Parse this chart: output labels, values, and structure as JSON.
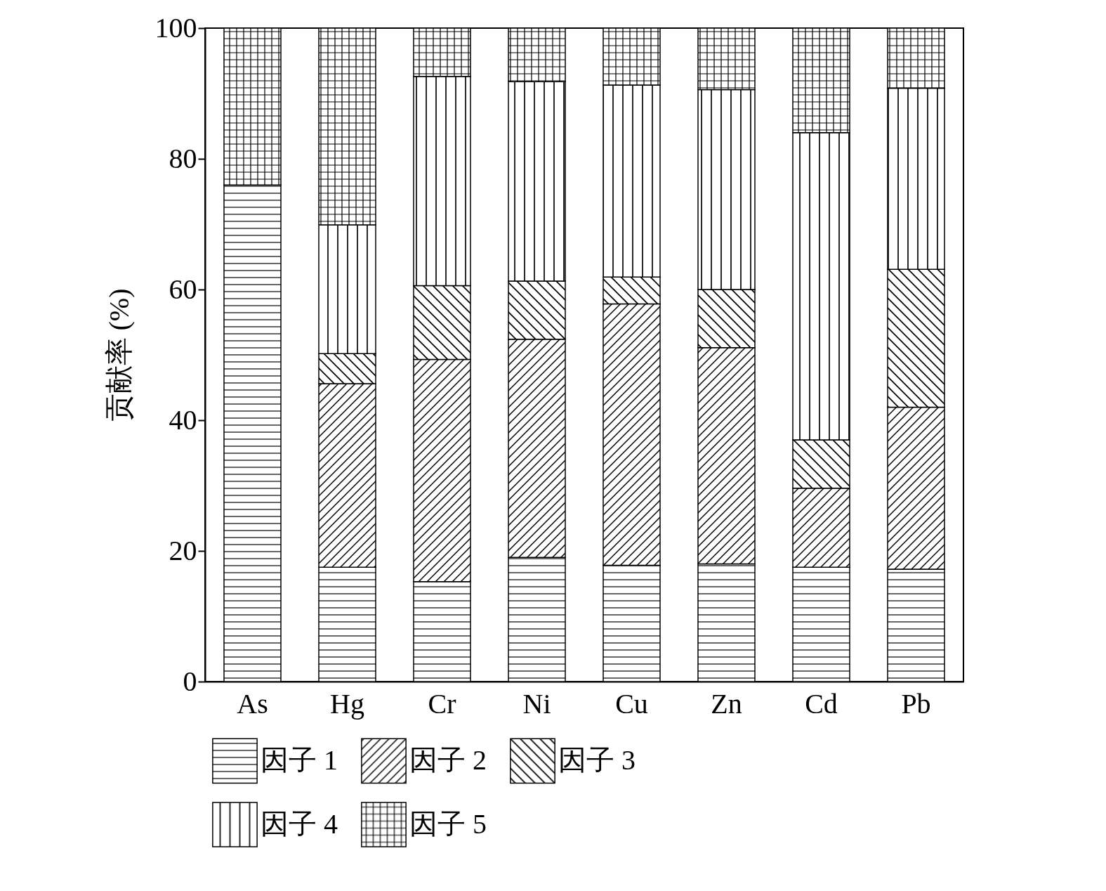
{
  "chart_data": {
    "type": "bar",
    "stacked": true,
    "ylabel": "贡献率 (%)",
    "categories": [
      "As",
      "Hg",
      "Cr",
      "Ni",
      "Cu",
      "Zn",
      "Cd",
      "Pb"
    ],
    "series": [
      {
        "name": "因子 1",
        "color": "#000000",
        "values": [
          76,
          17.5,
          15.3,
          19,
          17.8,
          18,
          17.5,
          17.2
        ]
      },
      {
        "name": "因子 2",
        "color": "#000000",
        "values": [
          0,
          28.1,
          34,
          33.4,
          40,
          33.1,
          12.1,
          24.8
        ]
      },
      {
        "name": "因子 3",
        "color": "#000000",
        "values": [
          0,
          4.6,
          11.3,
          8.9,
          4.1,
          8.9,
          7.4,
          21.1
        ]
      },
      {
        "name": "因子 4",
        "color": "#000000",
        "values": [
          0,
          19.7,
          32,
          30.5,
          29.4,
          30.6,
          47,
          27.7
        ]
      },
      {
        "name": "因子 5",
        "color": "#000000",
        "values": [
          24,
          30.1,
          7.4,
          8.2,
          8.7,
          9.4,
          16,
          9.2
        ]
      }
    ],
    "ylim": [
      0,
      100
    ],
    "yticks": [
      0,
      20,
      40,
      60,
      80,
      100
    ],
    "grid": false,
    "legend": "bottom"
  }
}
